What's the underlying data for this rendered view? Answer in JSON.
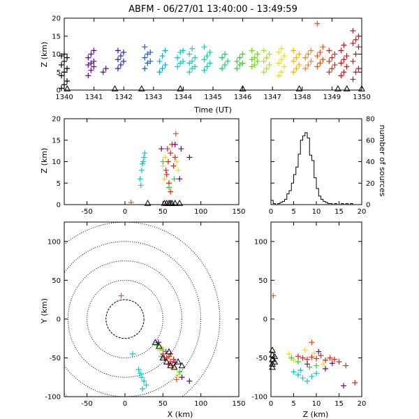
{
  "title": "ABFM - 06/27/01 13:40:00 - 13:49:59",
  "chart_data": [
    {
      "id": "time-height",
      "type": "scatter",
      "xlabel": "Time (UT)",
      "ylabel": "Z (km)",
      "xlim": [
        1340,
        1350
      ],
      "ylim": [
        0,
        20
      ],
      "x_ticks": [
        1340,
        1341,
        1342,
        1343,
        1344,
        1345,
        1346,
        1347,
        1348,
        1349,
        1350
      ],
      "y_ticks": [
        0,
        5,
        10,
        15,
        20
      ],
      "color_by_time": true,
      "groups": [
        {
          "x": 1340.0,
          "color": "#000000",
          "z": [
            0.5,
            1.5,
            2.5,
            4,
            5,
            6,
            7,
            8,
            9,
            9.5,
            10
          ]
        },
        {
          "x": 1340.9,
          "color": "#5a0a8a",
          "z": [
            4,
            5.5,
            6.5,
            7,
            7.5,
            8,
            9,
            10,
            11
          ]
        },
        {
          "x": 1341.4,
          "color": "#5a0a8a",
          "z": [
            5,
            6
          ]
        },
        {
          "x": 1341.9,
          "color": "#2020c0",
          "z": [
            6,
            7,
            8,
            8.5,
            9.5,
            10.5,
            11
          ]
        },
        {
          "x": 1342.8,
          "color": "#1060d8",
          "z": [
            6,
            7.5,
            8,
            9,
            10,
            10.5,
            12
          ]
        },
        {
          "x": 1343.3,
          "color": "#10a8d8",
          "z": [
            5,
            6,
            7,
            8,
            9.5,
            11
          ]
        },
        {
          "x": 1343.9,
          "color": "#10c8c8",
          "z": [
            6.5,
            7.5,
            8,
            9,
            10.5,
            11
          ]
        },
        {
          "x": 1344.3,
          "color": "#10d0b0",
          "z": [
            5,
            6,
            6.5,
            7.5,
            8,
            9,
            10,
            11.5
          ]
        },
        {
          "x": 1344.8,
          "color": "#10d098",
          "z": [
            5.5,
            6.5,
            7.5,
            8.5,
            9.5,
            10.5,
            12
          ]
        },
        {
          "x": 1345.4,
          "color": "#10d060",
          "z": [
            6,
            7,
            8,
            9,
            10
          ]
        },
        {
          "x": 1345.9,
          "color": "#30d030",
          "z": [
            6,
            7,
            7.5,
            8,
            9,
            10
          ]
        },
        {
          "x": 1346.4,
          "color": "#70d818",
          "z": [
            6.5,
            7,
            8,
            8.5,
            9,
            10,
            11
          ]
        },
        {
          "x": 1346.8,
          "color": "#b0e010",
          "z": [
            5,
            6,
            7,
            8,
            9,
            10,
            11
          ]
        },
        {
          "x": 1347.3,
          "color": "#e8e010",
          "z": [
            4,
            5,
            6.5,
            7.5,
            8.5,
            9.5,
            10.5,
            11.5
          ]
        },
        {
          "x": 1347.8,
          "color": "#f8b010",
          "z": [
            5,
            6,
            7,
            8,
            9,
            10,
            11
          ]
        },
        {
          "x": 1348.2,
          "color": "#f88010",
          "z": [
            6,
            7,
            8,
            9,
            10,
            11
          ]
        },
        {
          "x": 1348.6,
          "color": "#f05010",
          "z": [
            6.5,
            7.5,
            8.5,
            9.5,
            10.5,
            12,
            18.5
          ]
        },
        {
          "x": 1349.0,
          "color": "#e82010",
          "z": [
            5,
            6,
            7,
            8,
            9,
            10,
            11
          ]
        },
        {
          "x": 1349.4,
          "color": "#d81010",
          "z": [
            4,
            5,
            6.5,
            7.5,
            8.5,
            9.5,
            11,
            12.5
          ]
        },
        {
          "x": 1349.8,
          "color": "#d01010",
          "z": [
            3,
            5,
            6,
            8,
            10,
            12,
            13,
            14,
            15,
            16.5
          ]
        }
      ],
      "station_markers_x": [
        1340.1,
        1341.7,
        1342.6,
        1343.9,
        1346.0,
        1347.9,
        1349.2,
        1349.5,
        1350.0
      ]
    },
    {
      "id": "xz-projection",
      "type": "scatter",
      "xlabel": "",
      "ylabel": "Z (km)",
      "xlim": [
        -80,
        150
      ],
      "ylim": [
        0,
        20
      ],
      "x_ticks": [
        -50,
        0,
        50,
        100,
        150
      ],
      "y_ticks": [
        0,
        5,
        10,
        15,
        20
      ],
      "clusters": [
        {
          "color": "#10c8c8",
          "points": [
            [
              20,
              6
            ],
            [
              22,
              8
            ],
            [
              24,
              10
            ],
            [
              26,
              12
            ],
            [
              23,
              9.5
            ],
            [
              21,
              4.5
            ],
            [
              25,
              11
            ]
          ]
        },
        {
          "color": "#e82010",
          "points": [
            [
              55,
              7
            ],
            [
              57,
              10
            ],
            [
              60,
              12
            ],
            [
              62,
              14
            ],
            [
              58,
              5
            ],
            [
              54,
              8
            ],
            [
              64,
              9
            ],
            [
              60,
              3
            ],
            [
              66,
              11
            ],
            [
              56,
              13
            ]
          ]
        },
        {
          "color": "#e8e010",
          "points": [
            [
              50,
              9
            ],
            [
              53,
              11
            ],
            [
              68,
              10
            ],
            [
              52,
              6
            ],
            [
              70,
              8
            ]
          ]
        },
        {
          "color": "#5a0a8a",
          "points": [
            [
              48,
              13
            ],
            [
              72,
              6
            ],
            [
              66,
              14
            ],
            [
              74,
              13
            ],
            [
              85,
              11
            ]
          ]
        },
        {
          "color": "#30d030",
          "points": [
            [
              58,
              4
            ],
            [
              65,
              6
            ],
            [
              50,
              10
            ]
          ]
        },
        {
          "color": "#f05010",
          "points": [
            [
              67,
              16.5
            ],
            [
              8,
              0.5
            ]
          ]
        }
      ],
      "station_markers_x": [
        30,
        52,
        55,
        58,
        60,
        62,
        66,
        72
      ]
    },
    {
      "id": "altitude-histogram",
      "type": "bar",
      "xlabel": "",
      "ylabel": "number of sources",
      "xlim": [
        0,
        20
      ],
      "ylim": [
        0,
        80
      ],
      "x_ticks": [
        0,
        5,
        10,
        15,
        20
      ],
      "y_ticks": [
        0,
        20,
        40,
        60,
        80
      ],
      "bin_width": 0.5,
      "bins_start": [
        0,
        0.5,
        1,
        1.5,
        2,
        2.5,
        3,
        3.5,
        4,
        4.5,
        5,
        5.5,
        6,
        6.5,
        7,
        7.5,
        8,
        8.5,
        9,
        9.5,
        10,
        10.5,
        11,
        11.5,
        12,
        12.5,
        13,
        13.5,
        14,
        14.5,
        15,
        15.5,
        16,
        16.5,
        17,
        17.5
      ],
      "values": [
        4,
        1,
        0,
        1,
        2,
        3,
        5,
        10,
        13,
        20,
        28,
        35,
        47,
        60,
        64,
        67,
        62,
        46,
        41,
        25,
        15,
        8,
        5,
        3,
        2,
        1,
        1,
        0,
        1,
        0,
        0,
        1,
        0,
        1,
        0,
        1
      ]
    },
    {
      "id": "plan-view",
      "type": "scatter",
      "xlabel": "X (km)",
      "ylabel": "Y (km)",
      "xlim": [
        -80,
        150
      ],
      "ylim": [
        -100,
        125
      ],
      "x_ticks": [
        -50,
        0,
        50,
        100,
        150
      ],
      "y_ticks": [
        -100,
        -50,
        0,
        50,
        100
      ],
      "range_rings_km": [
        25,
        50,
        75,
        100,
        125
      ],
      "clusters": [
        {
          "color": "#10c8c8",
          "points": [
            [
              20,
              -70
            ],
            [
              22,
              -75
            ],
            [
              25,
              -80
            ],
            [
              28,
              -85
            ],
            [
              18,
              -65
            ],
            [
              23,
              -90
            ],
            [
              10,
              -45
            ],
            [
              48,
              -48
            ]
          ]
        },
        {
          "color": "#e82010",
          "points": [
            [
              50,
              -45
            ],
            [
              55,
              -50
            ],
            [
              60,
              -55
            ],
            [
              58,
              -48
            ],
            [
              62,
              -60
            ],
            [
              54,
              -42
            ],
            [
              64,
              -52
            ],
            [
              57,
              -58
            ],
            [
              52,
              -50
            ],
            [
              60,
              -45
            ]
          ]
        },
        {
          "color": "#e8e010",
          "points": [
            [
              46,
              -40
            ],
            [
              66,
              -62
            ],
            [
              70,
              -72
            ],
            [
              48,
              -36
            ]
          ]
        },
        {
          "color": "#5a0a8a",
          "points": [
            [
              44,
              -30
            ],
            [
              75,
              -75
            ],
            [
              85,
              -80
            ],
            [
              66,
              -56
            ]
          ]
        },
        {
          "color": "#30d030",
          "points": [
            [
              42,
              -34
            ],
            [
              72,
              -68
            ],
            [
              50,
              -40
            ]
          ]
        },
        {
          "color": "#f05010",
          "points": [
            [
              -5,
              30
            ],
            [
              68,
              -78
            ]
          ]
        }
      ],
      "station_markers": [
        [
          45,
          -35
        ],
        [
          40,
          -30
        ],
        [
          55,
          -55
        ],
        [
          60,
          -60
        ],
        [
          65,
          -62
        ],
        [
          70,
          -55
        ],
        [
          75,
          -60
        ],
        [
          50,
          -50
        ],
        [
          58,
          -42
        ]
      ],
      "centroid_marker": [
        -5,
        30
      ]
    },
    {
      "id": "zy-projection",
      "type": "scatter",
      "xlabel": "Z (km)",
      "ylabel": "",
      "xlim": [
        0,
        20
      ],
      "ylim": [
        -100,
        125
      ],
      "x_ticks": [
        0,
        5,
        10,
        15,
        20
      ],
      "y_ticks": [
        -100,
        -50,
        0,
        50,
        100
      ],
      "clusters": [
        {
          "color": "#10c8c8",
          "points": [
            [
              5,
              -68
            ],
            [
              6,
              -72
            ],
            [
              7,
              -76
            ],
            [
              8,
              -80
            ],
            [
              9,
              -74
            ],
            [
              10,
              -70
            ],
            [
              6.5,
              -66
            ]
          ]
        },
        {
          "color": "#e82010",
          "points": [
            [
              6,
              -48
            ],
            [
              7,
              -50
            ],
            [
              8,
              -52
            ],
            [
              9,
              -49
            ],
            [
              10,
              -51
            ],
            [
              11,
              -47
            ],
            [
              12,
              -53
            ],
            [
              13,
              -50
            ],
            [
              14,
              -52
            ],
            [
              15,
              -55
            ],
            [
              16.5,
              -60
            ],
            [
              18.5,
              -82
            ]
          ]
        },
        {
          "color": "#e8e010",
          "points": [
            [
              4,
              -45
            ],
            [
              5,
              -53
            ],
            [
              9.5,
              -44
            ],
            [
              11.5,
              -58
            ],
            [
              7.5,
              -40
            ]
          ]
        },
        {
          "color": "#5a0a8a",
          "points": [
            [
              8,
              -58
            ],
            [
              10.5,
              -42
            ],
            [
              13.5,
              -57
            ],
            [
              16,
              -86
            ],
            [
              12,
              -64
            ]
          ]
        },
        {
          "color": "#30d030",
          "points": [
            [
              4.5,
              -50
            ],
            [
              8.5,
              -62
            ],
            [
              10,
              -60
            ],
            [
              6,
              -55
            ]
          ]
        },
        {
          "color": "#f05010",
          "points": [
            [
              0.5,
              30
            ],
            [
              9,
              -30
            ]
          ]
        }
      ],
      "station_markers": [
        [
          0,
          -40
        ],
        [
          0,
          -46
        ],
        [
          0,
          -52
        ],
        [
          0,
          -58
        ],
        [
          0,
          -62
        ],
        [
          0.5,
          -55
        ],
        [
          0.5,
          -48
        ]
      ]
    }
  ]
}
